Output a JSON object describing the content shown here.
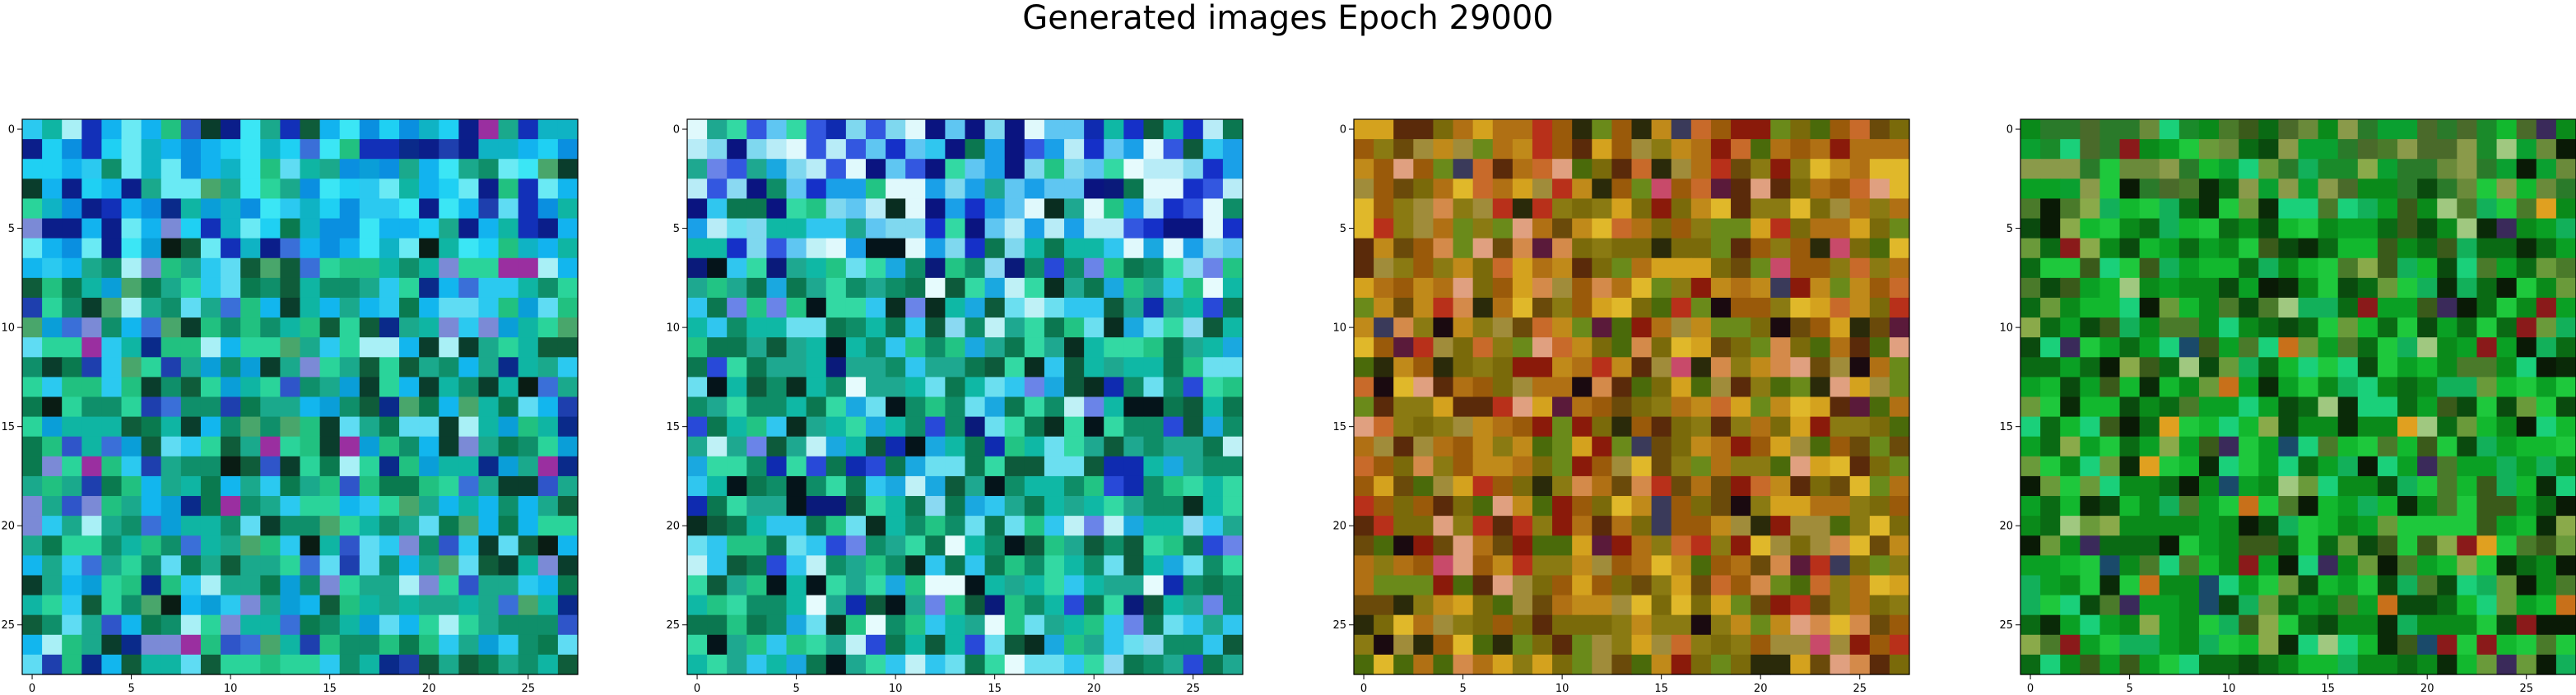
{
  "figure": {
    "title": "Generated images Epoch 29000"
  },
  "chart_data": [
    {
      "type": "heatmap",
      "title": "",
      "xlabel": "",
      "ylabel": "",
      "grid": "28x28 RGB pixels",
      "xlim": [
        -0.5,
        27.5
      ],
      "ylim": [
        27.5,
        -0.5
      ],
      "xticks": [
        0,
        5,
        10,
        15,
        20,
        25
      ],
      "yticks": [
        0,
        5,
        10,
        15,
        20,
        25
      ],
      "palette": [
        "#0a2a8a",
        "#1e3fae",
        "#2f55c9",
        "#3a6fd8",
        "#0a9ed8",
        "#12b6ee",
        "#2bc9f0",
        "#5fdcf3",
        "#a9f0f6",
        "#0fb5a3",
        "#1aa98c",
        "#0f8f6a",
        "#0a7a4f",
        "#21c180",
        "#2ad49a",
        "#49a66b",
        "#0f5c3a",
        "#0a3d2c",
        "#0a1c14",
        "#7b8ad6",
        "#9a2fa0"
      ],
      "weights": [
        1,
        1,
        1,
        1,
        2,
        2,
        2,
        2,
        1,
        4,
        4,
        4,
        3,
        3,
        3,
        2,
        2,
        2,
        1,
        1,
        0.3
      ],
      "top_palette": [
        "#0b1e8a",
        "#1230b8",
        "#0a8fe0",
        "#12b3ef",
        "#1fd0f3",
        "#3be6f5",
        "#6aeaf4",
        "#0fb3c4"
      ],
      "top_rows": 7
    },
    {
      "type": "heatmap",
      "title": "",
      "xlabel": "",
      "ylabel": "",
      "grid": "28x28 RGB pixels",
      "xlim": [
        -0.5,
        27.5
      ],
      "ylim": [
        27.5,
        -0.5
      ],
      "xticks": [
        0,
        5,
        10,
        15,
        20,
        25
      ],
      "yticks": [
        0,
        5,
        10,
        15,
        20,
        25
      ],
      "palette": [
        "#0a1a7a",
        "#0f2bb0",
        "#2849d8",
        "#6a84e8",
        "#1aa8e0",
        "#30c6ef",
        "#6bdff0",
        "#bff1f6",
        "#e6fbfd",
        "#0fb8a5",
        "#1ea890",
        "#0e8d67",
        "#0b7750",
        "#22c484",
        "#33d9a3",
        "#0d5a3b",
        "#092d20",
        "#05141a",
        "#8ad9f2"
      ],
      "weights": [
        1,
        1,
        1,
        0.6,
        2,
        2,
        2,
        1,
        0.6,
        4,
        4,
        4,
        3,
        3,
        3,
        2,
        1,
        1,
        1
      ],
      "top_palette": [
        "#0a1480",
        "#1530c8",
        "#3357e0",
        "#1aa0e8",
        "#5fc6f2",
        "#b8ecf7",
        "#e0f9fc",
        "#7fd8ef"
      ],
      "top_rows": 7
    },
    {
      "type": "heatmap",
      "title": "",
      "xlabel": "",
      "ylabel": "",
      "grid": "28x28 RGB pixels",
      "xlim": [
        -0.5,
        27.5
      ],
      "ylim": [
        27.5,
        -0.5
      ],
      "xticks": [
        0,
        5,
        10,
        15,
        20,
        25
      ],
      "yticks": [
        0,
        5,
        10,
        15,
        20,
        25
      ],
      "palette": [
        "#7a6a0a",
        "#8a7a12",
        "#9a5a0a",
        "#b07014",
        "#c08a1a",
        "#d4a21e",
        "#e0b82a",
        "#a08c3a",
        "#6a4a0a",
        "#5a2a0a",
        "#8a1a0a",
        "#b8301a",
        "#c86a2a",
        "#d48a4a",
        "#6a8a1a",
        "#4a6a0a",
        "#2a2a0a",
        "#1a0a10",
        "#5a1a3a",
        "#3a3a5a",
        "#c84a6a",
        "#e0a080"
      ],
      "weights": [
        4,
        4,
        3,
        3,
        3,
        2,
        2,
        2,
        2,
        1.5,
        1,
        1,
        1.5,
        1,
        2,
        2,
        1,
        0.6,
        0.6,
        0.4,
        0.3,
        0.8
      ],
      "top_palette": [
        "#6a5a0a",
        "#8a7a1a",
        "#a07a20",
        "#7a4a0a",
        "#9a8a2a"
      ],
      "top_rows": 0
    },
    {
      "type": "heatmap",
      "title": "",
      "xlabel": "",
      "ylabel": "",
      "grid": "28x28 RGB pixels",
      "xlim": [
        -0.5,
        27.5
      ],
      "ylim": [
        27.5,
        -0.5
      ],
      "xticks": [
        0,
        5,
        10,
        15,
        20,
        25
      ],
      "yticks": [
        0,
        5,
        10,
        15,
        20,
        25
      ],
      "palette": [
        "#0a8a1a",
        "#0aa024",
        "#12b82e",
        "#1ec83c",
        "#0a6a14",
        "#0a4a0e",
        "#0a2a08",
        "#0a1a06",
        "#6a9a3a",
        "#8aaa4a",
        "#4a7a2a",
        "#1ad07a",
        "#12b05a",
        "#3a5a1a",
        "#8a1a1a",
        "#c8701a",
        "#e0a020",
        "#3a2a5a",
        "#1a4a6a",
        "#a0c880"
      ],
      "weights": [
        4,
        4,
        3,
        3,
        3,
        2.5,
        1.5,
        1.2,
        1.5,
        1,
        2,
        2,
        2,
        1.5,
        0.4,
        0.4,
        0.3,
        0.3,
        0.4,
        0.6
      ],
      "top_palette": [
        "#8a9a4a",
        "#6a8a3a",
        "#4a6a2a",
        "#1a8a2a",
        "#0aa030",
        "#2a7a2a"
      ],
      "top_rows": 4
    }
  ]
}
